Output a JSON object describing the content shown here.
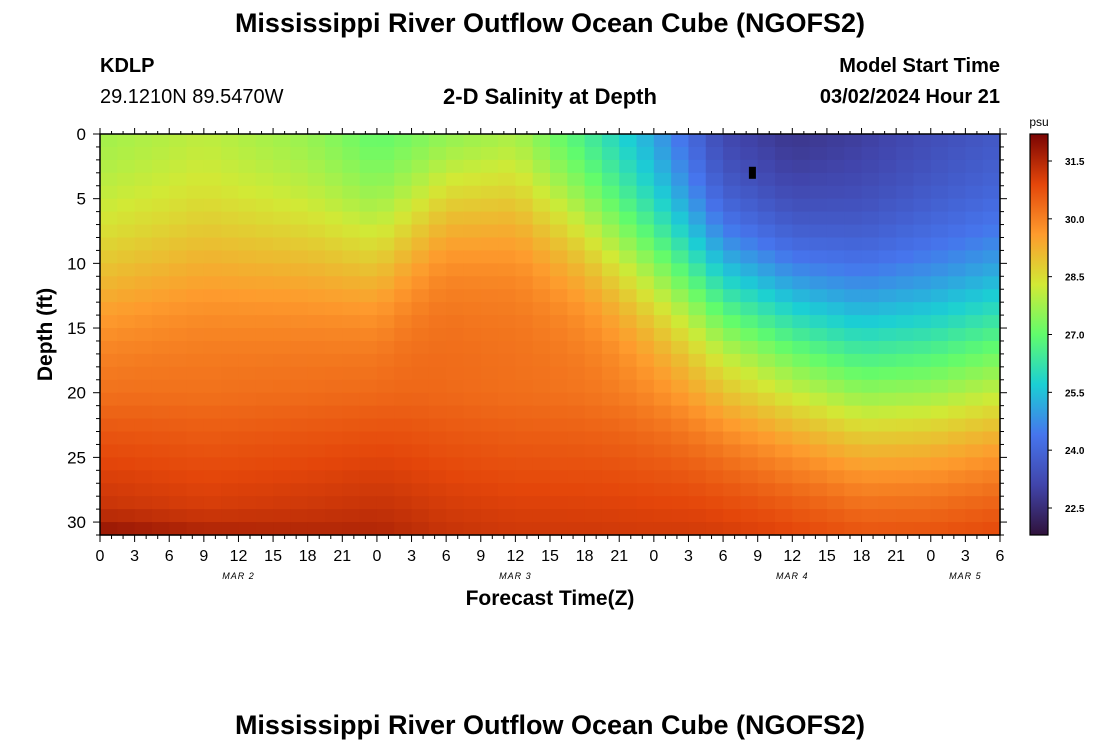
{
  "page": {
    "title": "Mississippi River Outflow Ocean Cube (NGOFS2)",
    "footer_title": "Mississippi River Outflow Ocean Cube (NGOFS2)"
  },
  "station": {
    "id": "KDLP",
    "coords": "29.1210N  89.5470W"
  },
  "plot": {
    "subtitle": "2-D Salinity at Depth"
  },
  "model": {
    "start_label": "Model Start Time",
    "start_value": "03/02/2024 Hour 21"
  },
  "chart_data": {
    "type": "heatmap",
    "title": "2-D Salinity at Depth",
    "xlabel": "Forecast Time(Z)",
    "ylabel": "Depth (ft)",
    "x_tick_labels": [
      "0",
      "3",
      "6",
      "9",
      "12",
      "15",
      "18",
      "21",
      "0",
      "3",
      "6",
      "9",
      "12",
      "15",
      "18",
      "21",
      "0",
      "3",
      "6",
      "9",
      "12",
      "15",
      "18",
      "21",
      "0",
      "3",
      "6"
    ],
    "x_range_hours": [
      0,
      78
    ],
    "date_labels": [
      {
        "label": "MAR 2",
        "hour": 12
      },
      {
        "label": "MAR 3",
        "hour": 36
      },
      {
        "label": "MAR 4",
        "hour": 60
      },
      {
        "label": "MAR 5",
        "hour": 75
      }
    ],
    "y_ticks": [
      0,
      5,
      10,
      15,
      20,
      25,
      30
    ],
    "y_range_ft": [
      0,
      31
    ],
    "y_inverted": true,
    "colorbar": {
      "unit": "psu",
      "ticks": [
        "31.5",
        "30.0",
        "28.5",
        "27.0",
        "25.5",
        "24.0",
        "22.5"
      ],
      "range": [
        21.8,
        32.2
      ],
      "colors": [
        "#30123b",
        "#4145ab",
        "#4675ed",
        "#1bcfd4",
        "#61fc6c",
        "#d2e935",
        "#fe9b2d",
        "#e4460a",
        "#7a0403"
      ]
    },
    "grid_cols": 52,
    "grid_rows": 31,
    "surface_profile": [
      {
        "hour": 0,
        "s_top": 27.5,
        "z_mid": 11,
        "s_deep": 30.6
      },
      {
        "hour": 9,
        "s_top": 27.8,
        "z_mid": 9,
        "s_deep": 30.4
      },
      {
        "hour": 18,
        "s_top": 27.3,
        "z_mid": 9,
        "s_deep": 30.5
      },
      {
        "hour": 24,
        "s_top": 26.6,
        "z_mid": 9,
        "s_deep": 30.6
      },
      {
        "hour": 30,
        "s_top": 26.9,
        "z_mid": 5,
        "s_deep": 30.4
      },
      {
        "hour": 36,
        "s_top": 27.3,
        "z_mid": 5,
        "s_deep": 30.3
      },
      {
        "hour": 42,
        "s_top": 26.0,
        "z_mid": 7,
        "s_deep": 30.3
      },
      {
        "hour": 48,
        "s_top": 24.6,
        "z_mid": 10,
        "s_deep": 30.3
      },
      {
        "hour": 54,
        "s_top": 22.7,
        "z_mid": 13,
        "s_deep": 30.4
      },
      {
        "hour": 60,
        "s_top": 22.3,
        "z_mid": 15,
        "s_deep": 30.4
      },
      {
        "hour": 66,
        "s_top": 22.6,
        "z_mid": 17,
        "s_deep": 30.4
      },
      {
        "hour": 72,
        "s_top": 23.0,
        "z_mid": 17,
        "s_deep": 30.4
      },
      {
        "hour": 78,
        "s_top": 23.3,
        "z_mid": 16,
        "s_deep": 30.4
      }
    ],
    "min_marker": {
      "hour": 56.5,
      "depth_ft": 3
    }
  }
}
